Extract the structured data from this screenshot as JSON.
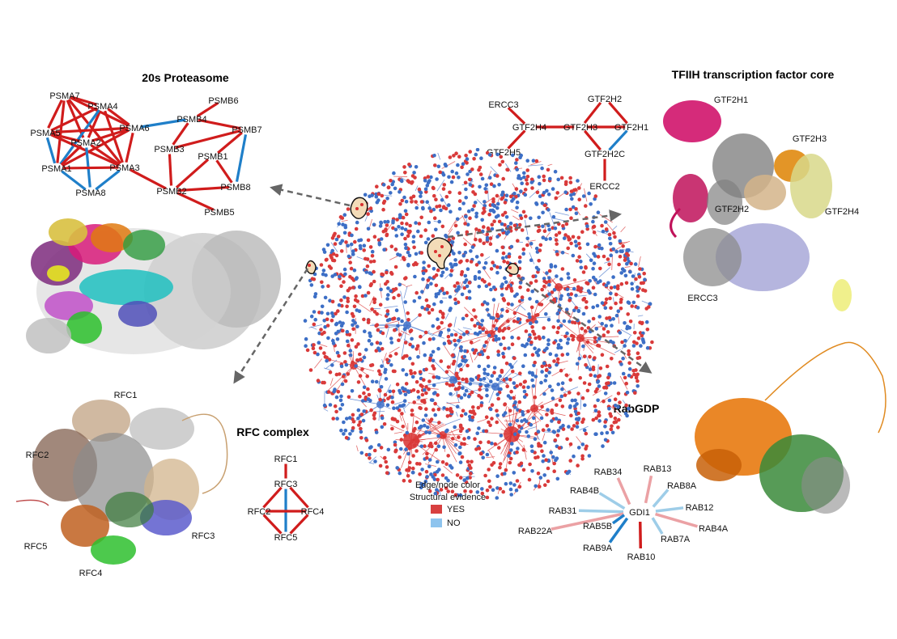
{
  "colors": {
    "yes": "#d01c1c",
    "no": "#1f7fc9",
    "yes_light": "#eba1a4",
    "no_light": "#9ecde8",
    "node_red": "#d93a3a",
    "node_blue": "#3d6fc6",
    "arrow": "#666666"
  },
  "titles": {
    "proteasome": "20s Proteasome",
    "tfiih": "TFIIH transcription factor core",
    "rfc": "RFC complex",
    "rabgdp": "RabGDP"
  },
  "legend": {
    "line1": "Edge/node color",
    "line2": "Structural evidence",
    "yes": "YES",
    "no": "NO"
  },
  "proteasome_nodes": [
    "PSMA7",
    "PSMA4",
    "PSMB6",
    "PSMA5",
    "PSMA6",
    "PSMB4",
    "PSMB7",
    "PSMA2",
    "PSMB3",
    "PSMB1",
    "PSMA1",
    "PSMA3",
    "PSMB8",
    "PSMA8",
    "PSMB2",
    "PSMB5"
  ],
  "tfiih_nodes": [
    "GTF2H2",
    "ERCC3",
    "GTF2H4",
    "GTF2H3",
    "GTF2H1",
    "GTF2H5",
    "GTF2H2C",
    "ERCC2"
  ],
  "rfc_nodes": [
    "RFC1",
    "RFC3",
    "RFC2",
    "RFC4",
    "RFC5"
  ],
  "rab_nodes": {
    "center": "GDI1",
    "partners": [
      "RAB34",
      "RAB13",
      "RAB4B",
      "RAB8A",
      "RAB31",
      "RAB12",
      "RAB22A",
      "RAB5B",
      "RAB4A",
      "RAB7A",
      "RAB9A",
      "RAB10"
    ]
  },
  "structure_labels": {
    "tfiih": [
      "GTF2H1",
      "GTF2H3",
      "GTF2H2",
      "GTF2H4",
      "ERCC3"
    ],
    "rfc": [
      "RFC1",
      "RFC2",
      "RFC3",
      "RFC5",
      "RFC4"
    ]
  }
}
